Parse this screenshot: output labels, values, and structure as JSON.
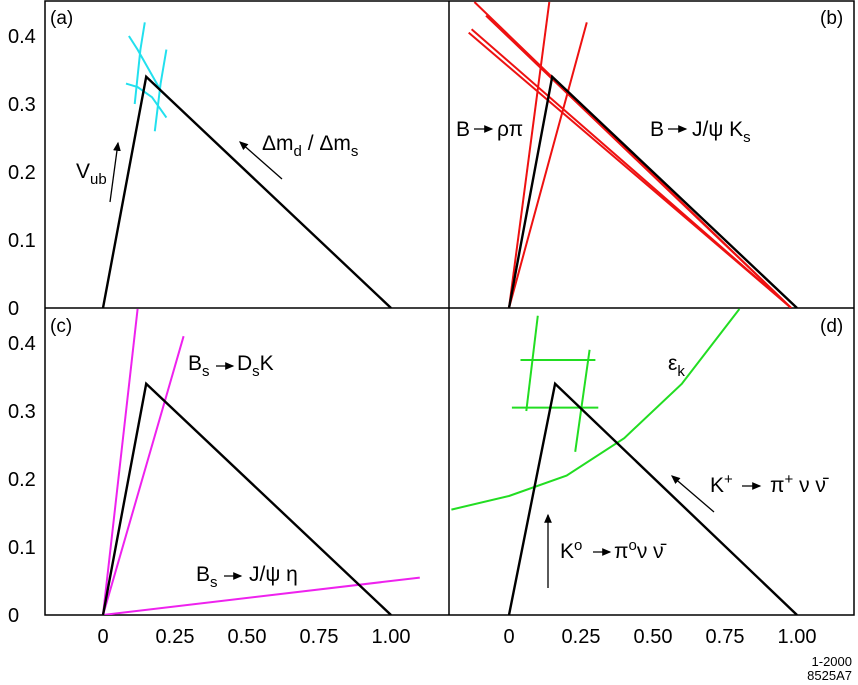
{
  "colors": {
    "frame": "#000000",
    "triangle": "#000000",
    "cyan": "#22e0ee",
    "red": "#ee1111",
    "magenta": "#ee22ee",
    "green": "#22dd22"
  },
  "chart_data": [
    {
      "panel": "(a)",
      "type": "line",
      "xlim": [
        -0.2,
        1.2
      ],
      "ylim": [
        0,
        0.42
      ],
      "triangle": [
        [
          0,
          0
        ],
        [
          0.15,
          0.34
        ],
        [
          1.0,
          0
        ]
      ],
      "yticks": [
        "0",
        "0.1",
        "0.2",
        "0.3",
        "0.4"
      ],
      "series": [
        {
          "color": "cyan",
          "x": [
            0.09,
            0.12,
            0.16,
            0.2
          ],
          "y": [
            0.4,
            0.38,
            0.35,
            0.32
          ]
        },
        {
          "color": "cyan",
          "x": [
            0.08,
            0.12,
            0.17,
            0.22
          ],
          "y": [
            0.33,
            0.325,
            0.31,
            0.28
          ]
        },
        {
          "color": "cyan",
          "x": [
            0.145,
            0.13,
            0.11
          ],
          "y": [
            0.42,
            0.38,
            0.3
          ]
        },
        {
          "color": "cyan",
          "x": [
            0.22,
            0.2,
            0.18
          ],
          "y": [
            0.38,
            0.33,
            0.26
          ]
        }
      ],
      "annotations": [
        {
          "text": "V",
          "sub": "ub",
          "arrow": "up"
        },
        {
          "text": "Δm",
          "sub": "d",
          "text2": " / Δm",
          "sub2": "s",
          "arrow": "up-left"
        }
      ]
    },
    {
      "panel": "(b)",
      "type": "line",
      "xlim": [
        -0.2,
        1.2
      ],
      "ylim": [
        0,
        0.42
      ],
      "triangle": [
        [
          0,
          0
        ],
        [
          0.15,
          0.34
        ],
        [
          1.0,
          0
        ]
      ],
      "series": [
        {
          "color": "red",
          "x": [
            0,
            0.14
          ],
          "y": [
            0,
            0.45
          ]
        },
        {
          "color": "red",
          "x": [
            0,
            0.27
          ],
          "y": [
            0,
            0.42
          ]
        },
        {
          "color": "red",
          "x": [
            -0.12,
            0.98
          ],
          "y": [
            0.45,
            0
          ]
        },
        {
          "color": "red",
          "x": [
            -0.08,
            0.98
          ],
          "y": [
            0.43,
            0
          ]
        },
        {
          "color": "red",
          "x": [
            -0.13,
            0.98
          ],
          "y": [
            0.41,
            0
          ]
        },
        {
          "color": "red",
          "x": [
            -0.14,
            0.98
          ],
          "y": [
            0.405,
            0
          ]
        }
      ],
      "annotations": [
        {
          "text": "B",
          "arrow_text": "ρπ"
        },
        {
          "text": "B",
          "arrow_text": "J/ψ K",
          "sub": "s"
        }
      ]
    },
    {
      "panel": "(c)",
      "type": "line",
      "xlim": [
        -0.2,
        1.2
      ],
      "ylim": [
        0,
        0.45
      ],
      "triangle": [
        [
          0,
          0
        ],
        [
          0.15,
          0.34
        ],
        [
          1.0,
          0
        ]
      ],
      "yticks": [
        "0",
        "0.1",
        "0.2",
        "0.3",
        "0.4"
      ],
      "xticks": [
        "0",
        "0.25",
        "0.50",
        "0.75",
        "1.00"
      ],
      "series": [
        {
          "color": "magenta",
          "x": [
            0,
            0.12
          ],
          "y": [
            0,
            0.45
          ]
        },
        {
          "color": "magenta",
          "x": [
            0,
            0.28
          ],
          "y": [
            0,
            0.41
          ]
        },
        {
          "color": "magenta",
          "x": [
            0,
            1.1
          ],
          "y": [
            0,
            0.055
          ]
        }
      ],
      "annotations": [
        {
          "text": "B",
          "sub": "s",
          "arrow_text": "D",
          "sub2": "s",
          "text2": "K"
        },
        {
          "text": "B",
          "sub": "s",
          "arrow_text": "J/ψ η"
        }
      ]
    },
    {
      "panel": "(d)",
      "type": "line",
      "xlim": [
        -0.2,
        1.2
      ],
      "ylim": [
        0,
        0.45
      ],
      "triangle": [
        [
          0,
          0
        ],
        [
          0.16,
          0.34
        ],
        [
          1.0,
          0
        ]
      ],
      "xticks": [
        "0",
        "0.25",
        "0.50",
        "0.75",
        "1.00"
      ],
      "series": [
        {
          "color": "green",
          "x": [
            0.1,
            0.06
          ],
          "y": [
            0.44,
            0.3
          ]
        },
        {
          "color": "green",
          "x": [
            0.28,
            0.23
          ],
          "y": [
            0.39,
            0.24
          ]
        },
        {
          "color": "green",
          "x": [
            0.04,
            0.3
          ],
          "y": [
            0.375,
            0.375
          ]
        },
        {
          "color": "green",
          "x": [
            0.01,
            0.31
          ],
          "y": [
            0.305,
            0.305
          ]
        },
        {
          "color": "green",
          "x": [
            -0.2,
            0.0,
            0.2,
            0.4,
            0.6,
            0.8
          ],
          "y": [
            0.155,
            0.175,
            0.205,
            0.26,
            0.34,
            0.45
          ]
        }
      ],
      "annotations": [
        {
          "text": "ε",
          "sub": "k"
        },
        {
          "text": "K",
          "sup": "+",
          "arrow_text": "π",
          "sup2": "+",
          "text2": " ν ν̄",
          "arrow": "up-left"
        },
        {
          "text": "K",
          "sup": "o",
          "arrow_text": "π",
          "sup2": "o",
          "text2": "ν ν̄",
          "arrow": "up"
        }
      ]
    }
  ],
  "footer": {
    "line1": "1-2000",
    "line2": "8525A7"
  }
}
